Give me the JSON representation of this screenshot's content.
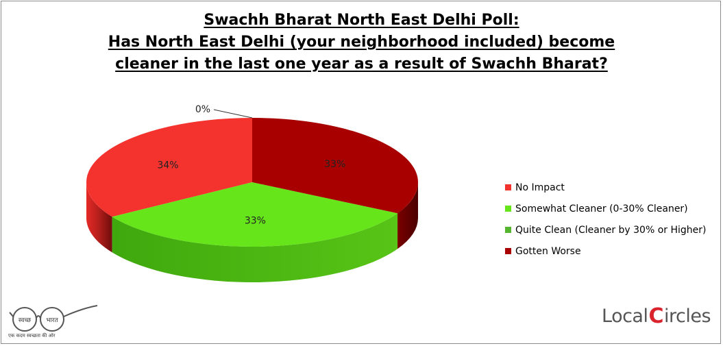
{
  "title_lines": [
    "Swachh Bharat North East Delhi Poll:",
    "Has North East Delhi (your neighborhood included) become",
    "cleaner in the last one year as a result of Swachh Bharat?"
  ],
  "chart_data": {
    "type": "pie",
    "series": [
      {
        "name": "No Impact",
        "value": 34,
        "label": "34%",
        "color": "#f4332f"
      },
      {
        "name": "Somewhat Cleaner (0-30% Cleaner)",
        "value": 33,
        "label": "33%",
        "color": "#66e61a"
      },
      {
        "name": "Quite Clean (Cleaner by 30% or Higher)",
        "value": 0,
        "label": "0%",
        "color": "#55b52e"
      },
      {
        "name": "Gotten Worse",
        "value": 33,
        "label": "33%",
        "color": "#a80000"
      }
    ],
    "style": "3d",
    "legend_position": "right"
  },
  "logos": {
    "left_word_1": "स्वच्छ",
    "left_word_2": "भारत",
    "left_caption": "एक कदम स्वच्छता की ओर",
    "right_prefix": "Local",
    "right_c": "C",
    "right_suffix": "ircles"
  }
}
